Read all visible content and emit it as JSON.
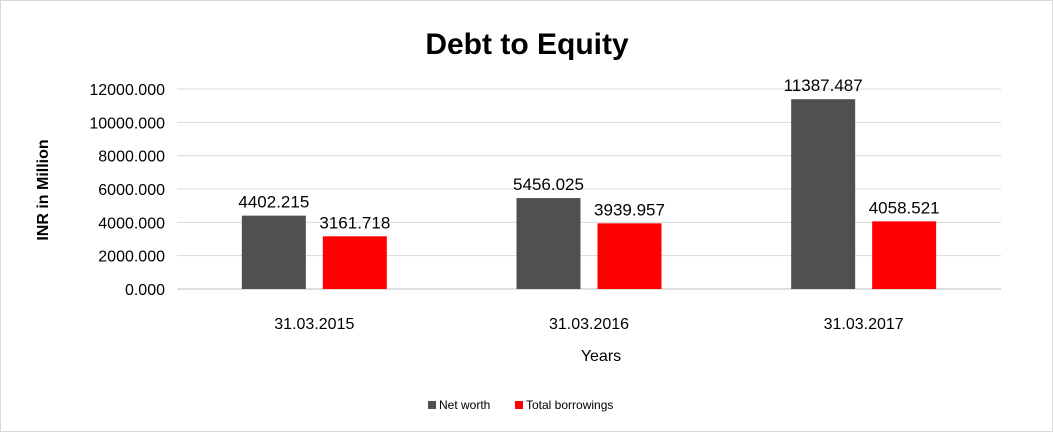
{
  "chart_data": {
    "type": "bar",
    "title": "Debt to Equity",
    "xlabel": "Years",
    "ylabel": "INR in Million",
    "categories": [
      "31.03.2015",
      "31.03.2016",
      "31.03.2017"
    ],
    "series": [
      {
        "name": "Net worth",
        "color": "#505050",
        "values": [
          4402.215,
          5456.025,
          11387.487
        ],
        "labels": [
          "4402.215",
          "5456.025",
          "11387.487"
        ]
      },
      {
        "name": "Total borrowings",
        "color": "#ff0000",
        "values": [
          3161.718,
          3939.957,
          4058.521
        ],
        "labels": [
          "3161.718",
          "3939.957",
          "4058.521"
        ]
      }
    ],
    "ylim": [
      0,
      12000
    ],
    "yticks": [
      "0.000",
      "2000.000",
      "4000.000",
      "6000.000",
      "8000.000",
      "10000.000",
      "12000.000"
    ],
    "grid": true,
    "legend_position": "bottom"
  }
}
